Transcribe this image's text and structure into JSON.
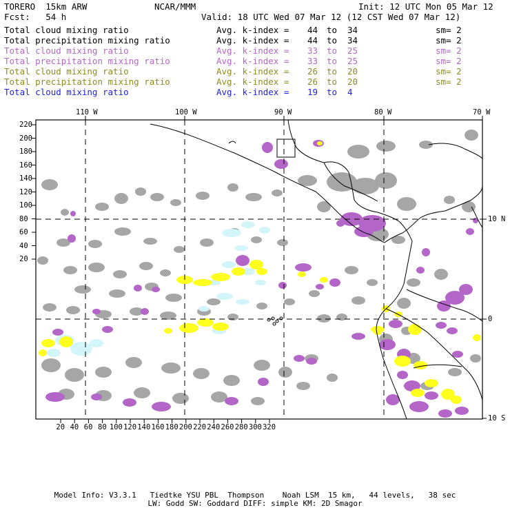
{
  "header": {
    "model": "TORERO  15km ARW",
    "org": "NCAR/MMM",
    "init": "Init: 12 UTC Mon 05 Mar 12",
    "fcst": "Fcst:   54 h",
    "valid": "Valid: 18 UTC Wed 07 Mar 12 (12 CST Wed 07 Mar 12)"
  },
  "legend": [
    {
      "field": "Total cloud mixing ratio",
      "kindex": "Avg. k-index =",
      "from": "44",
      "to_word": "to",
      "to": "34",
      "sm": "sm= 2",
      "color": "#000000"
    },
    {
      "field": "Total precipitation mixing ratio",
      "kindex": "Avg. k-index =",
      "from": "44",
      "to_word": "to",
      "to": "34",
      "sm": "sm= 2",
      "color": "#000000"
    },
    {
      "field": "Total cloud mixing ratio",
      "kindex": "Avg. k-index =",
      "from": "33",
      "to_word": "to",
      "to": "25",
      "sm": "sm= 2",
      "color": "#b366c8"
    },
    {
      "field": "Total precipitation mixing ratio",
      "kindex": "Avg. k-index =",
      "from": "33",
      "to_word": "to",
      "to": "25",
      "sm": "sm= 2",
      "color": "#b366c8"
    },
    {
      "field": "Total cloud mixing ratio",
      "kindex": "Avg. k-index =",
      "from": "26",
      "to_word": "to",
      "to": "20",
      "sm": "sm= 2",
      "color": "#8c8c1e"
    },
    {
      "field": "Total precipitation mixing ratio",
      "kindex": "Avg. k-index =",
      "from": "26",
      "to_word": "to",
      "to": "20",
      "sm": "sm= 2",
      "color": "#8c8c1e"
    },
    {
      "field": "Total cloud mixing ratio",
      "kindex": "Avg. k-index =",
      "from": "19",
      "to_word": "to",
      "to": "4",
      "sm": "",
      "color": "#1e1ee6"
    }
  ],
  "map": {
    "lon_labels": [
      "110 W",
      "100 W",
      "90 W",
      "80 W",
      "70 W"
    ],
    "lat_labels": [
      "10 N",
      "0",
      "10 S"
    ],
    "grid_y_labels": [
      "220",
      "200",
      "180",
      "160",
      "140",
      "120",
      "100",
      "80",
      "60",
      "40",
      "20"
    ],
    "grid_x_labels": [
      "20",
      "40",
      "60",
      "80",
      "100",
      "120",
      "140",
      "160",
      "180",
      "200",
      "220",
      "240",
      "260",
      "280",
      "300",
      "320"
    ],
    "colors": {
      "cloud_gray": "#a6a6a6",
      "purple": "#b366c8",
      "yellow": "#ffff1e",
      "light_blue": "#d2f5fa"
    }
  },
  "footer": {
    "line1": "Model Info: V3.3.1   Tiedtke YSU PBL  Thompson    Noah LSM  15 km,   44 levels,   38 sec",
    "line2": "LW: Godd SW: Goddard DIFF: simple KM: 2D Smagor"
  }
}
